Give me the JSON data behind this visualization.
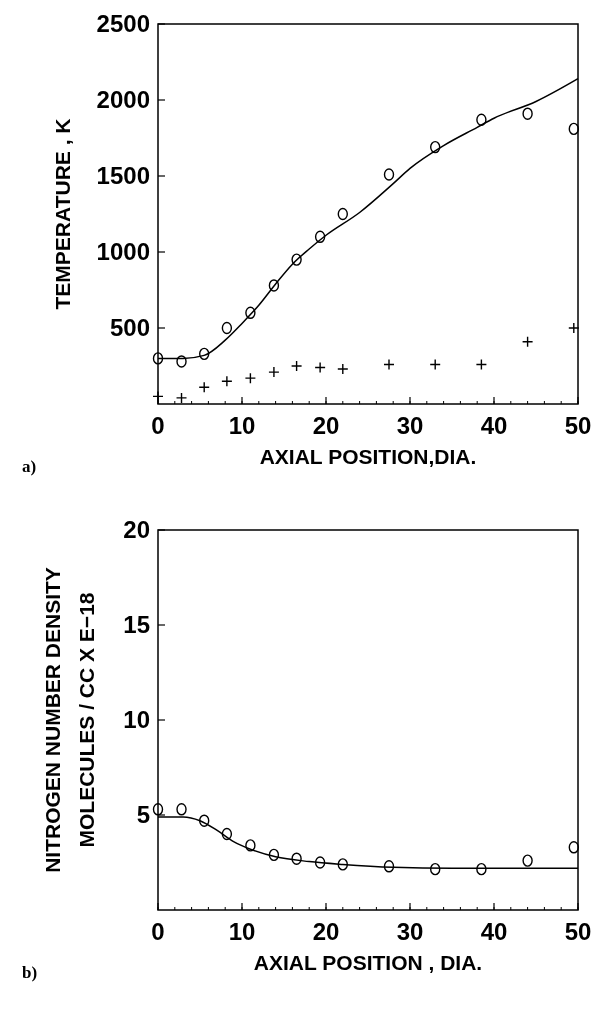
{
  "chart_data": [
    {
      "type": "scatter",
      "xlabel": "AXIAL POSITION,DIA.",
      "ylabel": "TEMPERATURE , K",
      "annotations": [
        "a)"
      ],
      "xlim": [
        0,
        50
      ],
      "xticks": [
        0,
        10,
        20,
        30,
        40,
        50
      ],
      "ylim": [
        0,
        2500
      ],
      "yticks": [
        500,
        1000,
        1500,
        2000,
        2500
      ],
      "grid": false,
      "series": [
        {
          "marker": "circle",
          "color": "#000000",
          "x": [
            0,
            2.8,
            5.5,
            8.2,
            11,
            13.8,
            16.5,
            19.3,
            22,
            27.5,
            33,
            38.5,
            44,
            49.5
          ],
          "values": [
            300,
            280,
            330,
            500,
            600,
            780,
            950,
            1100,
            1250,
            1510,
            1690,
            1870,
            1910,
            1810
          ]
        },
        {
          "marker": "cross",
          "color": "#000000",
          "x": [
            0,
            2.8,
            5.5,
            8.2,
            11,
            13.8,
            16.5,
            19.3,
            22,
            27.5,
            33,
            38.5,
            44,
            49.5
          ],
          "values": [
            50,
            40,
            110,
            150,
            170,
            210,
            250,
            240,
            230,
            260,
            260,
            260,
            410,
            500
          ]
        },
        {
          "type": "line",
          "marker": "none",
          "line_style": "solid",
          "color": "#000000",
          "x": [
            0,
            3,
            5.5,
            8,
            10,
            12,
            14,
            16,
            18,
            20,
            24,
            28,
            30,
            34,
            38,
            40,
            45,
            50
          ],
          "values": [
            300,
            300,
            320,
            420,
            530,
            650,
            790,
            920,
            1020,
            1110,
            1260,
            1450,
            1550,
            1700,
            1820,
            1880,
            1990,
            2140
          ]
        }
      ]
    },
    {
      "type": "scatter",
      "xlabel": "AXIAL POSITION , DIA.",
      "ylabel": "NITROGEN NUMBER DENSITY\nMOLECULES / CC X E−18",
      "annotations": [
        "b)"
      ],
      "xlim": [
        0,
        50
      ],
      "xticks": [
        0,
        10,
        20,
        30,
        40,
        50
      ],
      "ylim": [
        0,
        20
      ],
      "yticks": [
        5,
        10,
        15,
        20
      ],
      "grid": false,
      "series": [
        {
          "marker": "circle",
          "color": "#000000",
          "x": [
            0,
            2.8,
            5.5,
            8.2,
            11,
            13.8,
            16.5,
            19.3,
            22,
            27.5,
            33,
            38.5,
            44,
            49.5
          ],
          "values": [
            5.3,
            5.3,
            4.7,
            4.0,
            3.4,
            2.9,
            2.7,
            2.5,
            2.4,
            2.3,
            2.15,
            2.15,
            2.6,
            3.3
          ]
        },
        {
          "type": "line",
          "marker": "none",
          "line_style": "solid",
          "color": "#000000",
          "x": [
            0,
            3,
            5,
            7,
            9,
            11,
            14,
            18,
            22,
            28,
            35,
            50
          ],
          "values": [
            4.9,
            4.9,
            4.7,
            4.2,
            3.6,
            3.2,
            2.8,
            2.55,
            2.4,
            2.25,
            2.2,
            2.2
          ]
        }
      ]
    }
  ]
}
